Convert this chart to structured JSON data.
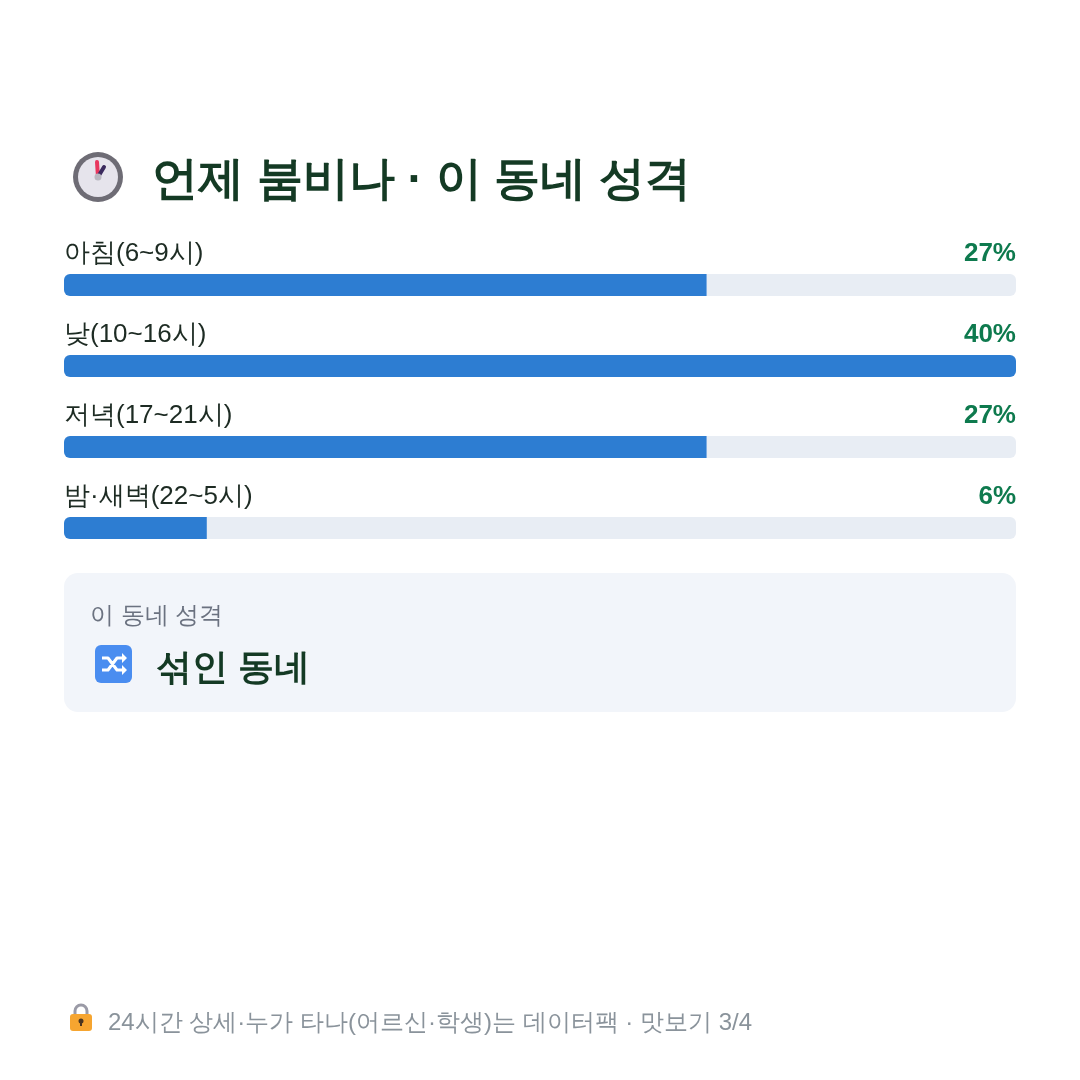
{
  "chart_data": [
    {
      "type": "bar",
      "orientation": "horizontal",
      "title": "언제 붐비나 · 이 동네 성격",
      "categories": [
        "아침(6~9시)",
        "낮(10~16시)",
        "저녁(17~21시)",
        "밤·새벽(22~5시)"
      ],
      "values": [
        27,
        40,
        27,
        6
      ],
      "value_labels": [
        "27%",
        "40%",
        "27%",
        "6%"
      ],
      "color": "#2d7dd2",
      "xlim": [
        0,
        40
      ],
      "tick_labels": "y",
      "annotations": [
        "24시간 상세·누가 타나(어르신·학생)는 데이터팩 · 맛보기 3/4"
      ]
    },
    {
      "type": "other",
      "annotations": [
        "이 동네 성격",
        "섞인 동네"
      ]
    }
  ]
}
